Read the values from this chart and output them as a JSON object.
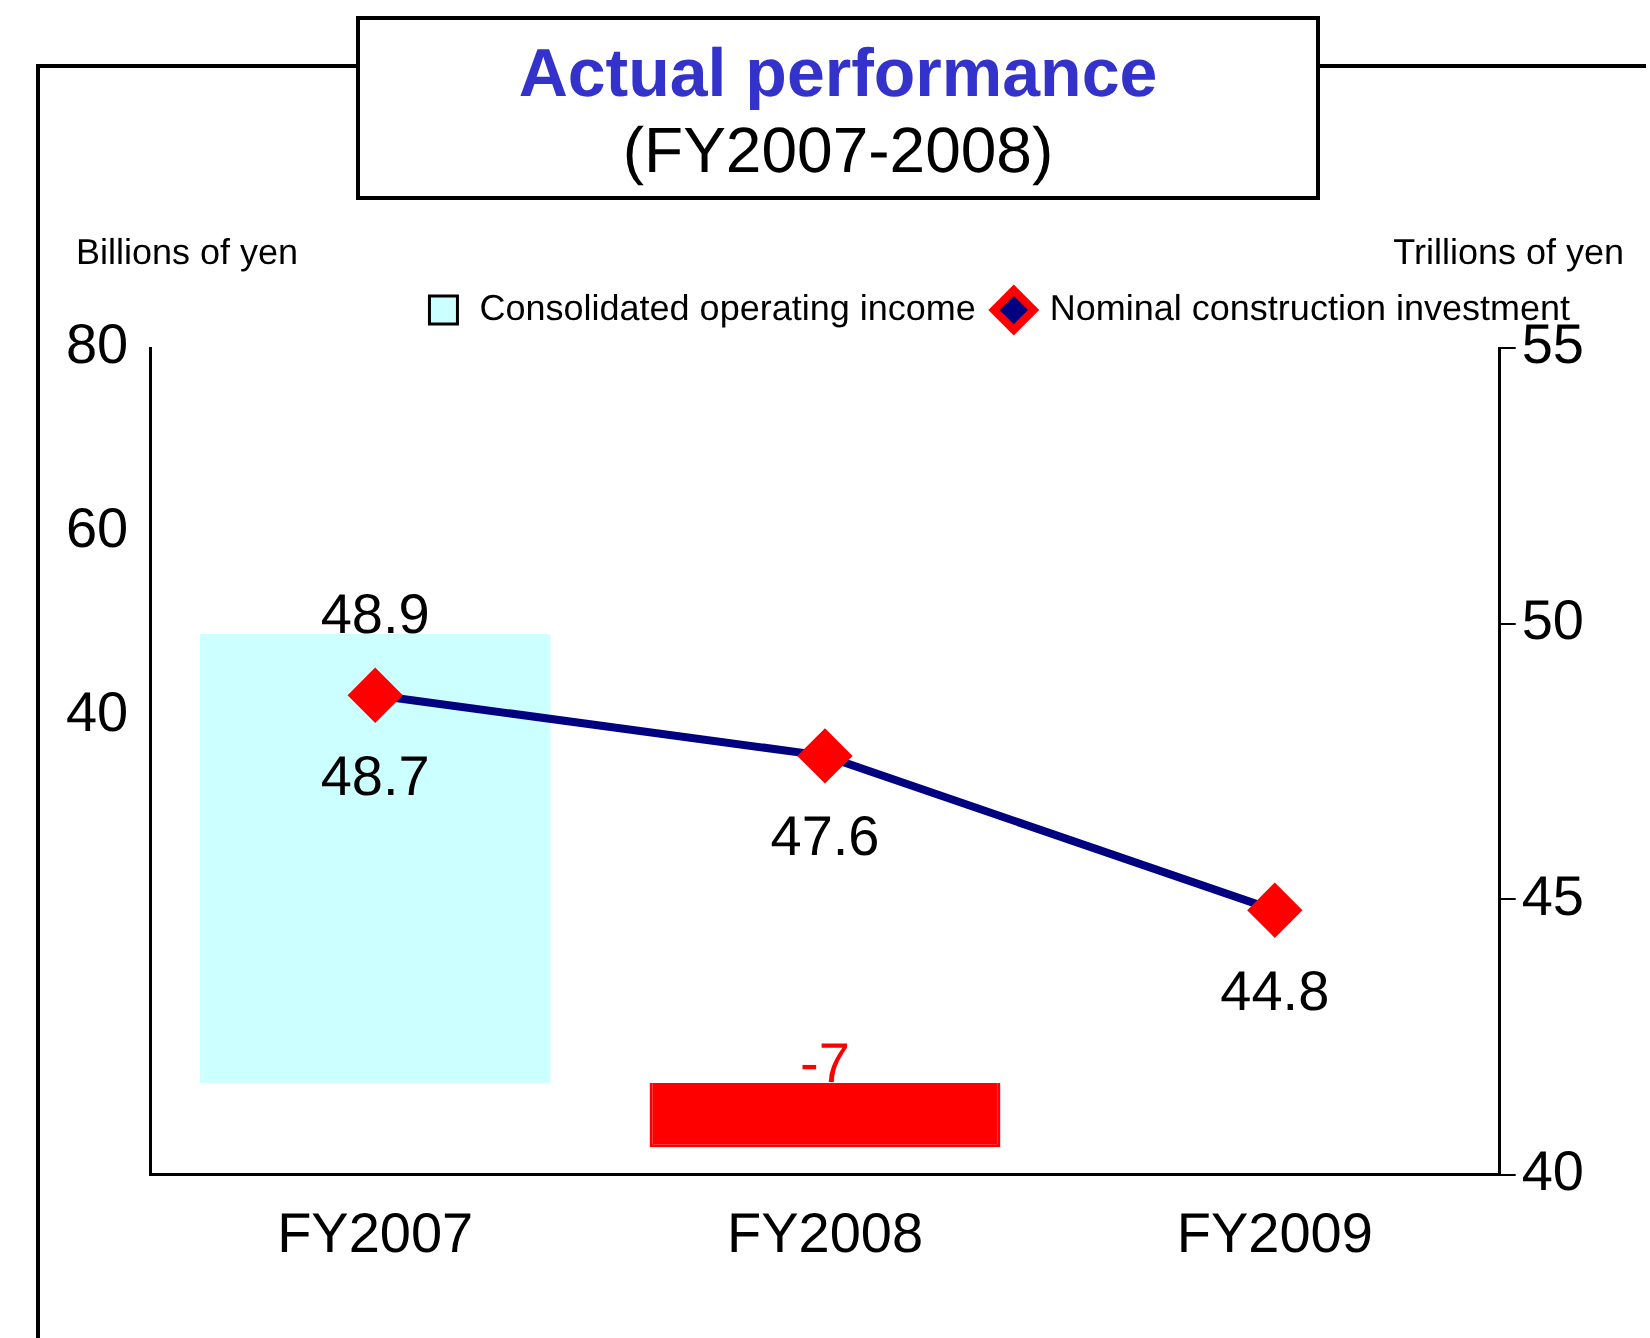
{
  "chart_data": {
    "type": "bar",
    "title": "Actual performance",
    "subtitle": "(FY2007-2008)",
    "ylabel": "Billions of yen",
    "y2label": "Trillions of yen",
    "categories": [
      "FY2007",
      "FY2008",
      "FY2009"
    ],
    "series": [
      {
        "name": "Consolidated operating income",
        "color": "#ccffff",
        "colors": [
          "#ccffff",
          "#ff0000",
          "#ccffff"
        ],
        "values": [
          48.9,
          -7,
          null
        ]
      },
      {
        "name": "Nominal construction investment",
        "type": "line",
        "color": "#000080",
        "axis": "y2",
        "marker": "diamond",
        "values": [
          48.7,
          47.6,
          44.8
        ]
      }
    ],
    "ylim": [
      -10,
      80
    ],
    "yticks": [
      40,
      60,
      80
    ],
    "y2lim": [
      40,
      55
    ],
    "y2ticks": [
      40,
      45,
      50,
      55
    ],
    "data_labels": true,
    "grid": false,
    "legend": "top right"
  }
}
